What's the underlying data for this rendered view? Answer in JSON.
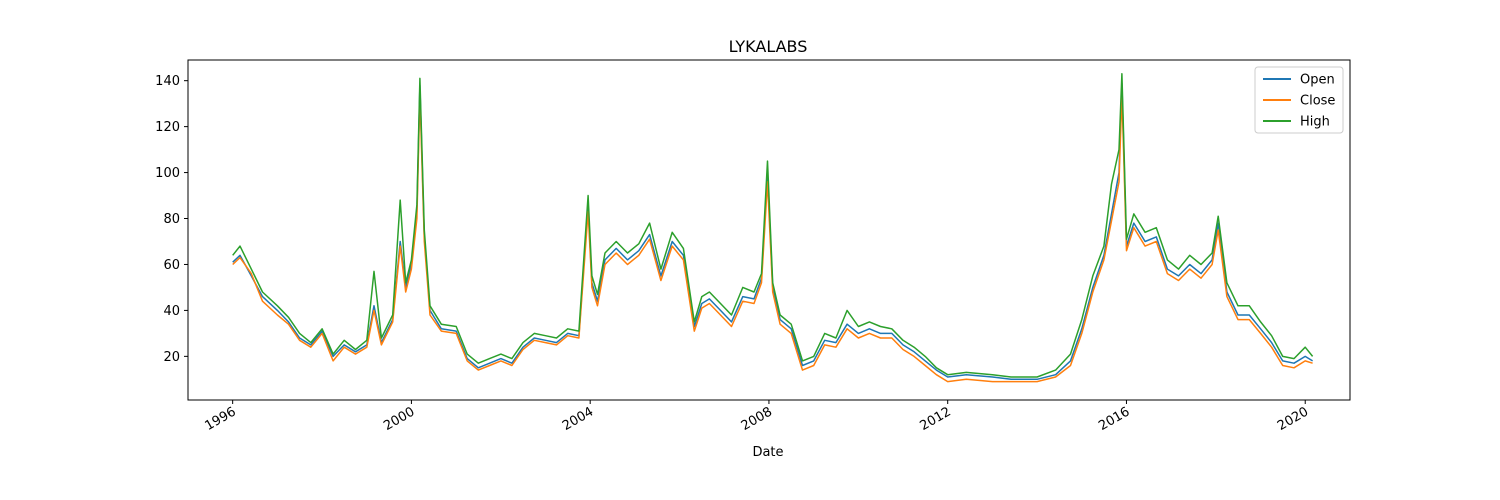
{
  "chart_data": {
    "type": "line",
    "title": "LYKALABS",
    "xlabel": "Date",
    "ylabel": "",
    "xlim": [
      "1995-01-01",
      "2021-01-01"
    ],
    "ylim": [
      1,
      149
    ],
    "x_ticks": [
      "1996",
      "2000",
      "2004",
      "2008",
      "2012",
      "2016",
      "2020"
    ],
    "y_ticks": [
      20,
      40,
      60,
      80,
      100,
      120,
      140
    ],
    "grid": false,
    "legend_position": "top-right",
    "x": [
      "1996-01-01",
      "1996-03-01",
      "1996-06-01",
      "1996-09-01",
      "1997-01-01",
      "1997-04-01",
      "1997-07-01",
      "1997-10-01",
      "1998-01-01",
      "1998-04-01",
      "1998-07-01",
      "1998-10-01",
      "1999-01-01",
      "1999-03-01",
      "1999-05-01",
      "1999-08-01",
      "1999-10-01",
      "1999-11-15",
      "2000-01-01",
      "2000-02-15",
      "2000-03-10",
      "2000-04-15",
      "2000-06-01",
      "2000-09-01",
      "2001-01-01",
      "2001-04-01",
      "2001-07-01",
      "2001-10-01",
      "2002-01-01",
      "2002-04-01",
      "2002-07-01",
      "2002-10-01",
      "2003-01-01",
      "2003-04-01",
      "2003-07-01",
      "2003-10-01",
      "2003-12-15",
      "2004-01-15",
      "2004-03-01",
      "2004-05-01",
      "2004-08-01",
      "2004-11-01",
      "2005-02-01",
      "2005-05-01",
      "2005-08-01",
      "2005-11-01",
      "2006-02-01",
      "2006-05-01",
      "2006-07-01",
      "2006-09-01",
      "2006-12-01",
      "2007-03-01",
      "2007-06-01",
      "2007-09-01",
      "2007-11-01",
      "2007-12-20",
      "2008-02-01",
      "2008-04-01",
      "2008-07-01",
      "2008-10-01",
      "2009-01-01",
      "2009-04-01",
      "2009-07-01",
      "2009-10-01",
      "2010-01-01",
      "2010-04-01",
      "2010-07-01",
      "2010-10-01",
      "2011-01-01",
      "2011-04-01",
      "2011-07-01",
      "2011-10-01",
      "2012-01-01",
      "2012-06-01",
      "2013-01-01",
      "2013-06-01",
      "2014-01-01",
      "2014-06-01",
      "2014-10-01",
      "2015-01-01",
      "2015-04-01",
      "2015-07-01",
      "2015-09-01",
      "2015-11-01",
      "2015-11-25",
      "2016-01-01",
      "2016-03-01",
      "2016-06-01",
      "2016-09-01",
      "2016-12-01",
      "2017-03-01",
      "2017-06-01",
      "2017-09-01",
      "2017-12-01",
      "2018-01-20",
      "2018-04-01",
      "2018-07-01",
      "2018-10-01",
      "2019-01-01",
      "2019-04-01",
      "2019-07-01",
      "2019-10-01",
      "2020-01-01",
      "2020-03-01"
    ],
    "series": [
      {
        "name": "Open",
        "color": "#1f77b4",
        "values": [
          61,
          64,
          55,
          46,
          40,
          35,
          28,
          25,
          31,
          20,
          25,
          22,
          25,
          42,
          26,
          36,
          70,
          50,
          60,
          83,
          138,
          72,
          40,
          32,
          31,
          19,
          15,
          17,
          19,
          17,
          24,
          28,
          27,
          26,
          30,
          29,
          86,
          52,
          44,
          62,
          67,
          62,
          66,
          73,
          55,
          70,
          64,
          33,
          43,
          45,
          40,
          35,
          46,
          45,
          54,
          100,
          50,
          36,
          32,
          16,
          18,
          27,
          26,
          34,
          30,
          32,
          30,
          30,
          25,
          22,
          18,
          14,
          11,
          12,
          11,
          10,
          10,
          12,
          18,
          32,
          50,
          64,
          82,
          100,
          139,
          68,
          78,
          70,
          72,
          58,
          55,
          60,
          56,
          62,
          78,
          48,
          38,
          38,
          32,
          26,
          18,
          17,
          20,
          18
        ]
      },
      {
        "name": "Close",
        "color": "#ff7f0e",
        "values": [
          60,
          63,
          56,
          44,
          38,
          34,
          27,
          24,
          30,
          18,
          24,
          21,
          24,
          40,
          25,
          35,
          68,
          48,
          58,
          80,
          134,
          70,
          38,
          31,
          30,
          18,
          14,
          16,
          18,
          16,
          23,
          27,
          26,
          25,
          29,
          28,
          83,
          50,
          42,
          60,
          65,
          60,
          64,
          71,
          53,
          68,
          62,
          31,
          41,
          43,
          38,
          33,
          44,
          43,
          52,
          96,
          48,
          34,
          30,
          14,
          16,
          25,
          24,
          32,
          28,
          30,
          28,
          28,
          23,
          20,
          16,
          12,
          9,
          10,
          9,
          9,
          9,
          11,
          16,
          30,
          48,
          62,
          79,
          96,
          134,
          66,
          76,
          68,
          70,
          56,
          53,
          58,
          54,
          60,
          75,
          46,
          36,
          36,
          30,
          24,
          16,
          15,
          18,
          17
        ]
      },
      {
        "name": "High",
        "color": "#2ca02c",
        "values": [
          64,
          68,
          58,
          48,
          42,
          37,
          30,
          26,
          32,
          21,
          27,
          23,
          27,
          57,
          28,
          38,
          88,
          52,
          62,
          86,
          141,
          75,
          42,
          34,
          33,
          21,
          17,
          19,
          21,
          19,
          26,
          30,
          29,
          28,
          32,
          31,
          90,
          55,
          47,
          65,
          70,
          65,
          69,
          78,
          58,
          74,
          67,
          35,
          46,
          48,
          43,
          38,
          50,
          48,
          56,
          105,
          52,
          38,
          34,
          18,
          20,
          30,
          28,
          40,
          33,
          35,
          33,
          32,
          27,
          24,
          20,
          15,
          12,
          13,
          12,
          11,
          11,
          14,
          21,
          36,
          55,
          68,
          95,
          110,
          143,
          71,
          82,
          74,
          76,
          62,
          58,
          64,
          60,
          65,
          81,
          52,
          42,
          42,
          35,
          29,
          20,
          19,
          24,
          20
        ]
      }
    ]
  }
}
